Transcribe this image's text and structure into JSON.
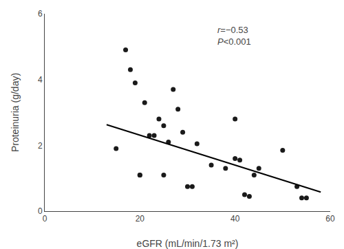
{
  "chart_data": {
    "type": "scatter",
    "x_label": "eGFR (mL/min/1.73 m²)",
    "y_label": "Proteinuria (g/day)",
    "annotation": [
      "r=−0.53",
      "P<0.001"
    ],
    "series": [
      {
        "type": "scatter",
        "color": "#1a1a1a",
        "x": [
          15,
          17,
          18,
          19,
          20,
          20,
          21,
          22,
          23,
          24,
          25,
          25,
          26,
          27,
          28,
          29,
          30,
          31,
          32,
          35,
          38,
          40,
          40,
          41,
          42,
          43,
          44,
          45,
          50,
          53,
          54,
          55
        ],
        "values": [
          1.9,
          4.9,
          4.3,
          3.9,
          1.1,
          1.1,
          3.3,
          2.3,
          2.3,
          2.8,
          2.6,
          1.1,
          2.1,
          3.7,
          3.1,
          2.4,
          0.75,
          0.75,
          2.05,
          1.4,
          1.3,
          2.8,
          1.6,
          1.55,
          0.5,
          0.45,
          1.1,
          1.3,
          1.85,
          0.75,
          0.4,
          0.4
        ]
      },
      {
        "type": "line",
        "color": "#000000",
        "x": [
          13,
          58
        ],
        "values": [
          2.63,
          0.58
        ]
      }
    ],
    "xlim": [
      0,
      60
    ],
    "ylim": [
      0,
      6
    ],
    "xticks": [
      0,
      20,
      40,
      60
    ],
    "yticks": [
      0,
      2,
      4,
      6
    ],
    "grid": false
  }
}
